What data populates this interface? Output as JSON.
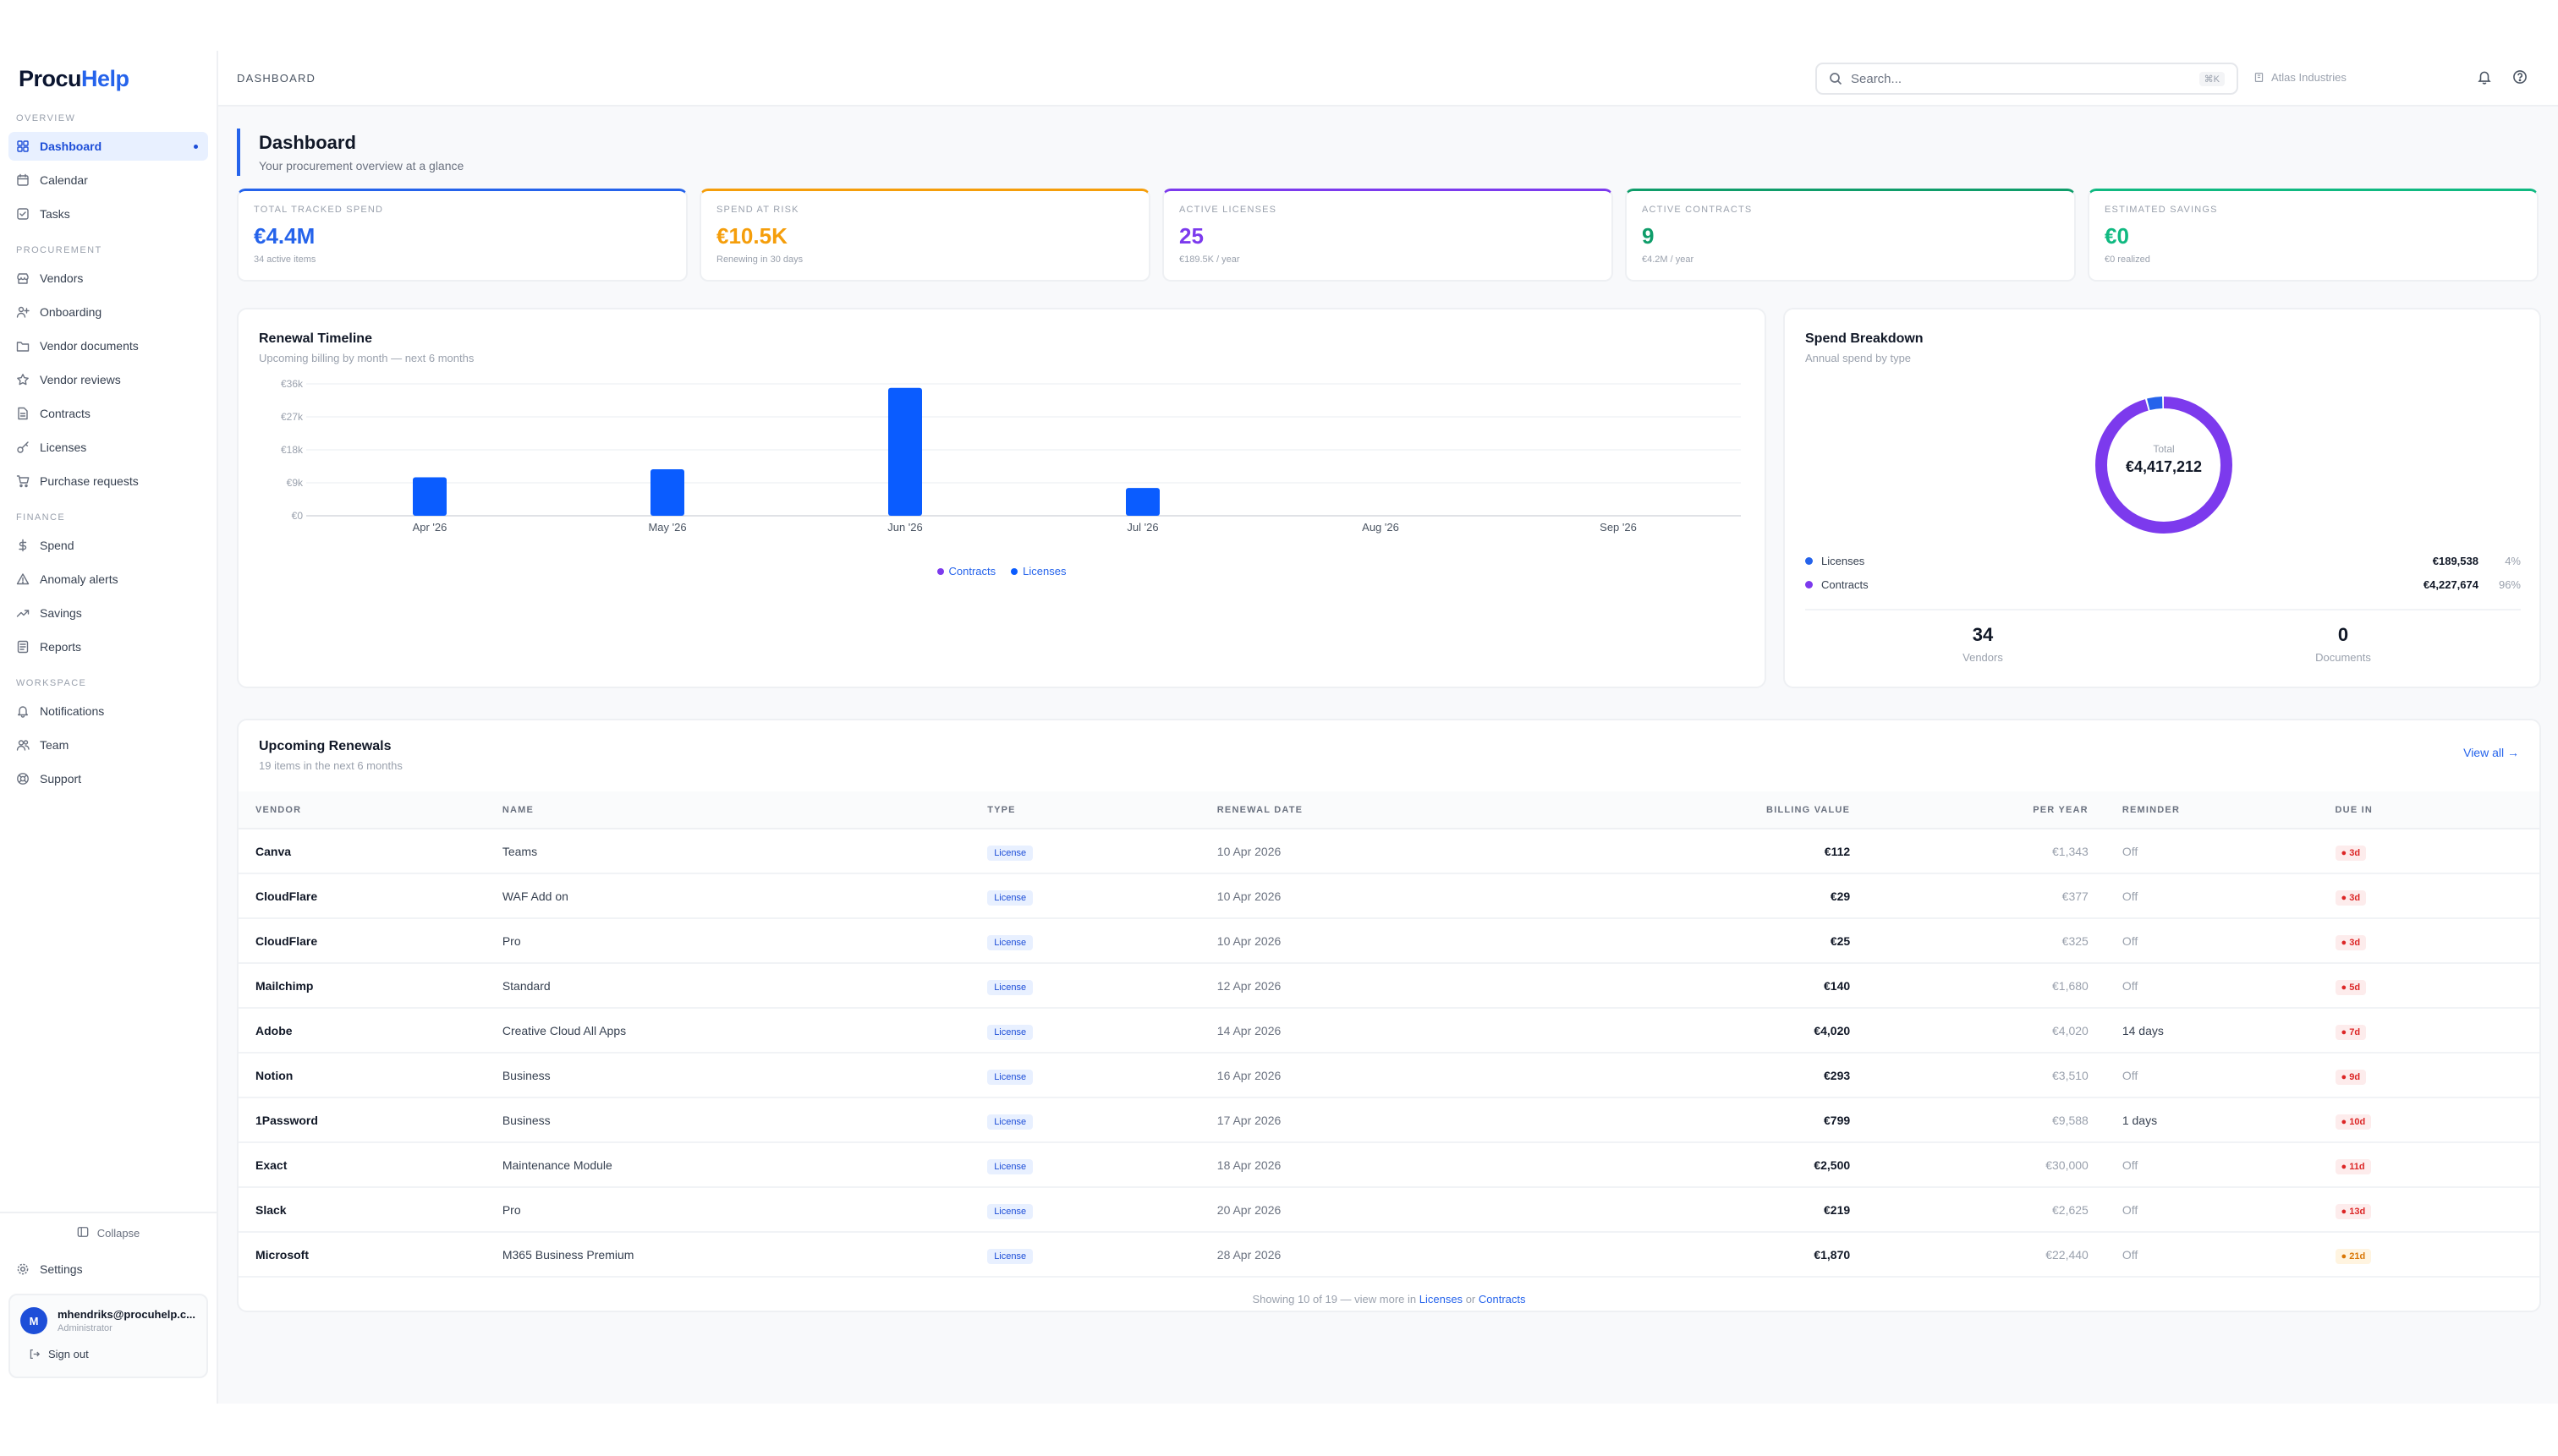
{
  "brand": {
    "part1": "Procu",
    "part2": "Help"
  },
  "sidebar": {
    "sections": [
      {
        "heading": "OVERVIEW",
        "items": [
          {
            "label": "Dashboard",
            "icon": "dashboard-icon",
            "active": true
          },
          {
            "label": "Calendar",
            "icon": "calendar-icon"
          },
          {
            "label": "Tasks",
            "icon": "tasks-icon"
          }
        ]
      },
      {
        "heading": "PROCUREMENT",
        "items": [
          {
            "label": "Vendors",
            "icon": "vendors-icon"
          },
          {
            "label": "Onboarding",
            "icon": "onboarding-icon"
          },
          {
            "label": "Vendor documents",
            "icon": "folder-icon"
          },
          {
            "label": "Vendor reviews",
            "icon": "star-icon"
          },
          {
            "label": "Contracts",
            "icon": "contract-icon"
          },
          {
            "label": "Licenses",
            "icon": "key-icon"
          },
          {
            "label": "Purchase requests",
            "icon": "cart-icon"
          }
        ]
      },
      {
        "heading": "FINANCE",
        "items": [
          {
            "label": "Spend",
            "icon": "dollar-icon"
          },
          {
            "label": "Anomaly alerts",
            "icon": "alert-icon"
          },
          {
            "label": "Savings",
            "icon": "trend-icon"
          },
          {
            "label": "Reports",
            "icon": "report-icon"
          }
        ]
      },
      {
        "heading": "WORKSPACE",
        "items": [
          {
            "label": "Notifications",
            "icon": "bell-icon"
          },
          {
            "label": "Team",
            "icon": "team-icon"
          },
          {
            "label": "Support",
            "icon": "support-icon"
          }
        ]
      }
    ],
    "collapse_label": "Collapse",
    "settings_label": "Settings",
    "user": {
      "initial": "M",
      "email": "mhendriks@procuhelp.c...",
      "role": "Administrator"
    },
    "signout_label": "Sign out"
  },
  "topbar": {
    "breadcrumb": "DASHBOARD",
    "search_placeholder": "Search...",
    "search_shortcut": "⌘K",
    "tenant": "Atlas Industries"
  },
  "page": {
    "title": "Dashboard",
    "subtitle": "Your procurement overview at a glance"
  },
  "kpis": [
    {
      "label": "TOTAL TRACKED SPEND",
      "value": "€4.4M",
      "sub": "34 active items",
      "color": "#2563eb"
    },
    {
      "label": "SPEND AT RISK",
      "value": "€10.5K",
      "sub": "Renewing in 30 days",
      "color": "#f59e0b"
    },
    {
      "label": "ACTIVE LICENSES",
      "value": "25",
      "sub": "€189.5K / year",
      "color": "#7c3aed"
    },
    {
      "label": "ACTIVE CONTRACTS",
      "value": "9",
      "sub": "€4.2M / year",
      "color": "#0f9d6a"
    },
    {
      "label": "ESTIMATED SAVINGS",
      "value": "€0",
      "sub": "€0 realized",
      "color": "#10b981"
    }
  ],
  "renewal_card": {
    "title": "Renewal Timeline",
    "subtitle": "Upcoming billing by month — next 6 months"
  },
  "chart_data": {
    "type": "bar",
    "categories": [
      "Apr '26",
      "May '26",
      "Jun '26",
      "Jul '26",
      "Aug '26",
      "Sep '26"
    ],
    "series": [
      {
        "name": "Contracts",
        "color": "#7c3aed",
        "values": [
          0,
          0,
          0,
          0,
          0,
          0
        ]
      },
      {
        "name": "Licenses",
        "color": "#0a5cff",
        "values": [
          10500,
          12700,
          34900,
          7600,
          0,
          0
        ]
      }
    ],
    "yticks": [
      "€0",
      "€9k",
      "€18k",
      "€27k",
      "€36k"
    ],
    "ylim": [
      0,
      36000
    ],
    "grid": true,
    "legend": "bottom-center"
  },
  "spend_card": {
    "title": "Spend Breakdown",
    "subtitle": "Annual spend by type",
    "donut_total_label": "Total",
    "donut_total_value": "€4,417,212",
    "items": [
      {
        "label": "Licenses",
        "value": "€189,538",
        "pct": "4%",
        "share": 0.04,
        "color": "#2563eb"
      },
      {
        "label": "Contracts",
        "value": "€4,227,674",
        "pct": "96%",
        "share": 0.96,
        "color": "#7c3aed"
      }
    ],
    "stats": [
      {
        "value": "34",
        "label": "Vendors"
      },
      {
        "value": "0",
        "label": "Documents"
      }
    ]
  },
  "renewals": {
    "title": "Upcoming Renewals",
    "subtitle": "19 items in the next 6 months",
    "view_all": "View all →",
    "columns": [
      "VENDOR",
      "NAME",
      "TYPE",
      "RENEWAL DATE",
      "BILLING VALUE",
      "PER YEAR",
      "REMINDER",
      "DUE IN"
    ],
    "rows": [
      {
        "vendor": "Canva",
        "name": "Teams",
        "type": "License",
        "date": "10 Apr 2026",
        "billing": "€112",
        "per_year": "€1,343",
        "reminder": "Off",
        "due": "3d"
      },
      {
        "vendor": "CloudFlare",
        "name": "WAF Add on",
        "type": "License",
        "date": "10 Apr 2026",
        "billing": "€29",
        "per_year": "€377",
        "reminder": "Off",
        "due": "3d"
      },
      {
        "vendor": "CloudFlare",
        "name": "Pro",
        "type": "License",
        "date": "10 Apr 2026",
        "billing": "€25",
        "per_year": "€325",
        "reminder": "Off",
        "due": "3d"
      },
      {
        "vendor": "Mailchimp",
        "name": "Standard",
        "type": "License",
        "date": "12 Apr 2026",
        "billing": "€140",
        "per_year": "€1,680",
        "reminder": "Off",
        "due": "5d"
      },
      {
        "vendor": "Adobe",
        "name": "Creative Cloud All Apps",
        "type": "License",
        "date": "14 Apr 2026",
        "billing": "€4,020",
        "per_year": "€4,020",
        "reminder": "14 days",
        "due": "7d"
      },
      {
        "vendor": "Notion",
        "name": "Business",
        "type": "License",
        "date": "16 Apr 2026",
        "billing": "€293",
        "per_year": "€3,510",
        "reminder": "Off",
        "due": "9d"
      },
      {
        "vendor": "1Password",
        "name": "Business",
        "type": "License",
        "date": "17 Apr 2026",
        "billing": "€799",
        "per_year": "€9,588",
        "reminder": "1 days",
        "due": "10d"
      },
      {
        "vendor": "Exact",
        "name": "Maintenance Module",
        "type": "License",
        "date": "18 Apr 2026",
        "billing": "€2,500",
        "per_year": "€30,000",
        "reminder": "Off",
        "due": "11d"
      },
      {
        "vendor": "Slack",
        "name": "Pro",
        "type": "License",
        "date": "20 Apr 2026",
        "billing": "€219",
        "per_year": "€2,625",
        "reminder": "Off",
        "due": "13d"
      },
      {
        "vendor": "Microsoft",
        "name": "M365 Business Premium",
        "type": "License",
        "date": "28 Apr 2026",
        "billing": "€1,870",
        "per_year": "€22,440",
        "reminder": "Off",
        "due": "21d",
        "warn": true
      }
    ],
    "footer_prefix": "Showing 10 of 19 — view more in",
    "footer_link1": "Licenses",
    "footer_or": "or",
    "footer_link2": "Contracts"
  }
}
